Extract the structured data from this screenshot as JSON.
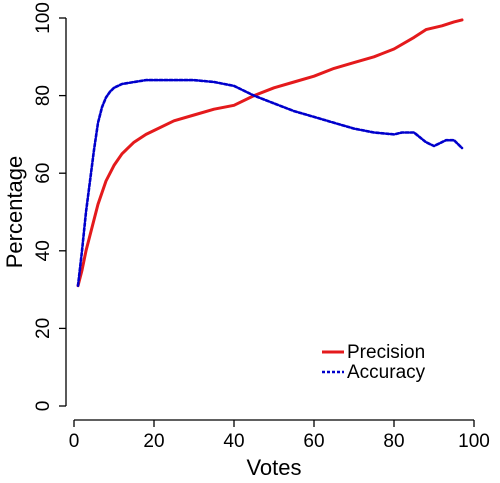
{
  "chart_data": {
    "type": "line",
    "title": "",
    "xlabel": "Votes",
    "ylabel": "Percentage",
    "xlim": [
      0,
      100
    ],
    "ylim": [
      0,
      100
    ],
    "x_ticks": [
      0,
      20,
      40,
      60,
      80,
      100
    ],
    "y_ticks": [
      0,
      20,
      40,
      60,
      80,
      100
    ],
    "grid": false,
    "legend_position": "bottom-right",
    "series": [
      {
        "name": "Precision",
        "color": "#e41a1c",
        "style": "solid",
        "x": [
          1,
          2,
          3,
          4,
          5,
          6,
          7,
          8,
          10,
          12,
          15,
          18,
          20,
          25,
          30,
          35,
          40,
          45,
          50,
          55,
          60,
          65,
          70,
          75,
          80,
          85,
          88,
          92,
          95,
          97
        ],
        "y": [
          31,
          35,
          40,
          44,
          48,
          52,
          55,
          58,
          62,
          65,
          68,
          70,
          71,
          73.5,
          75,
          76.5,
          77.5,
          80,
          82,
          83.5,
          85,
          87,
          88.5,
          90,
          92,
          95,
          97,
          98,
          99,
          99.5
        ]
      },
      {
        "name": "Accuracy",
        "color": "#0000cc",
        "style": "dashed",
        "x": [
          1,
          2,
          3,
          4,
          5,
          6,
          7,
          8,
          9,
          10,
          12,
          15,
          18,
          20,
          25,
          30,
          35,
          40,
          45,
          50,
          55,
          60,
          65,
          70,
          75,
          80,
          82,
          85,
          88,
          90,
          93,
          95,
          97
        ],
        "y": [
          31,
          40,
          50,
          58,
          66,
          73,
          77,
          79.5,
          81,
          82,
          83,
          83.5,
          84,
          84,
          84,
          84,
          83.5,
          82.5,
          80,
          78,
          76,
          74.5,
          73,
          71.5,
          70.5,
          70,
          70.5,
          70.5,
          68,
          67,
          68.5,
          68.5,
          66.5
        ]
      }
    ]
  }
}
